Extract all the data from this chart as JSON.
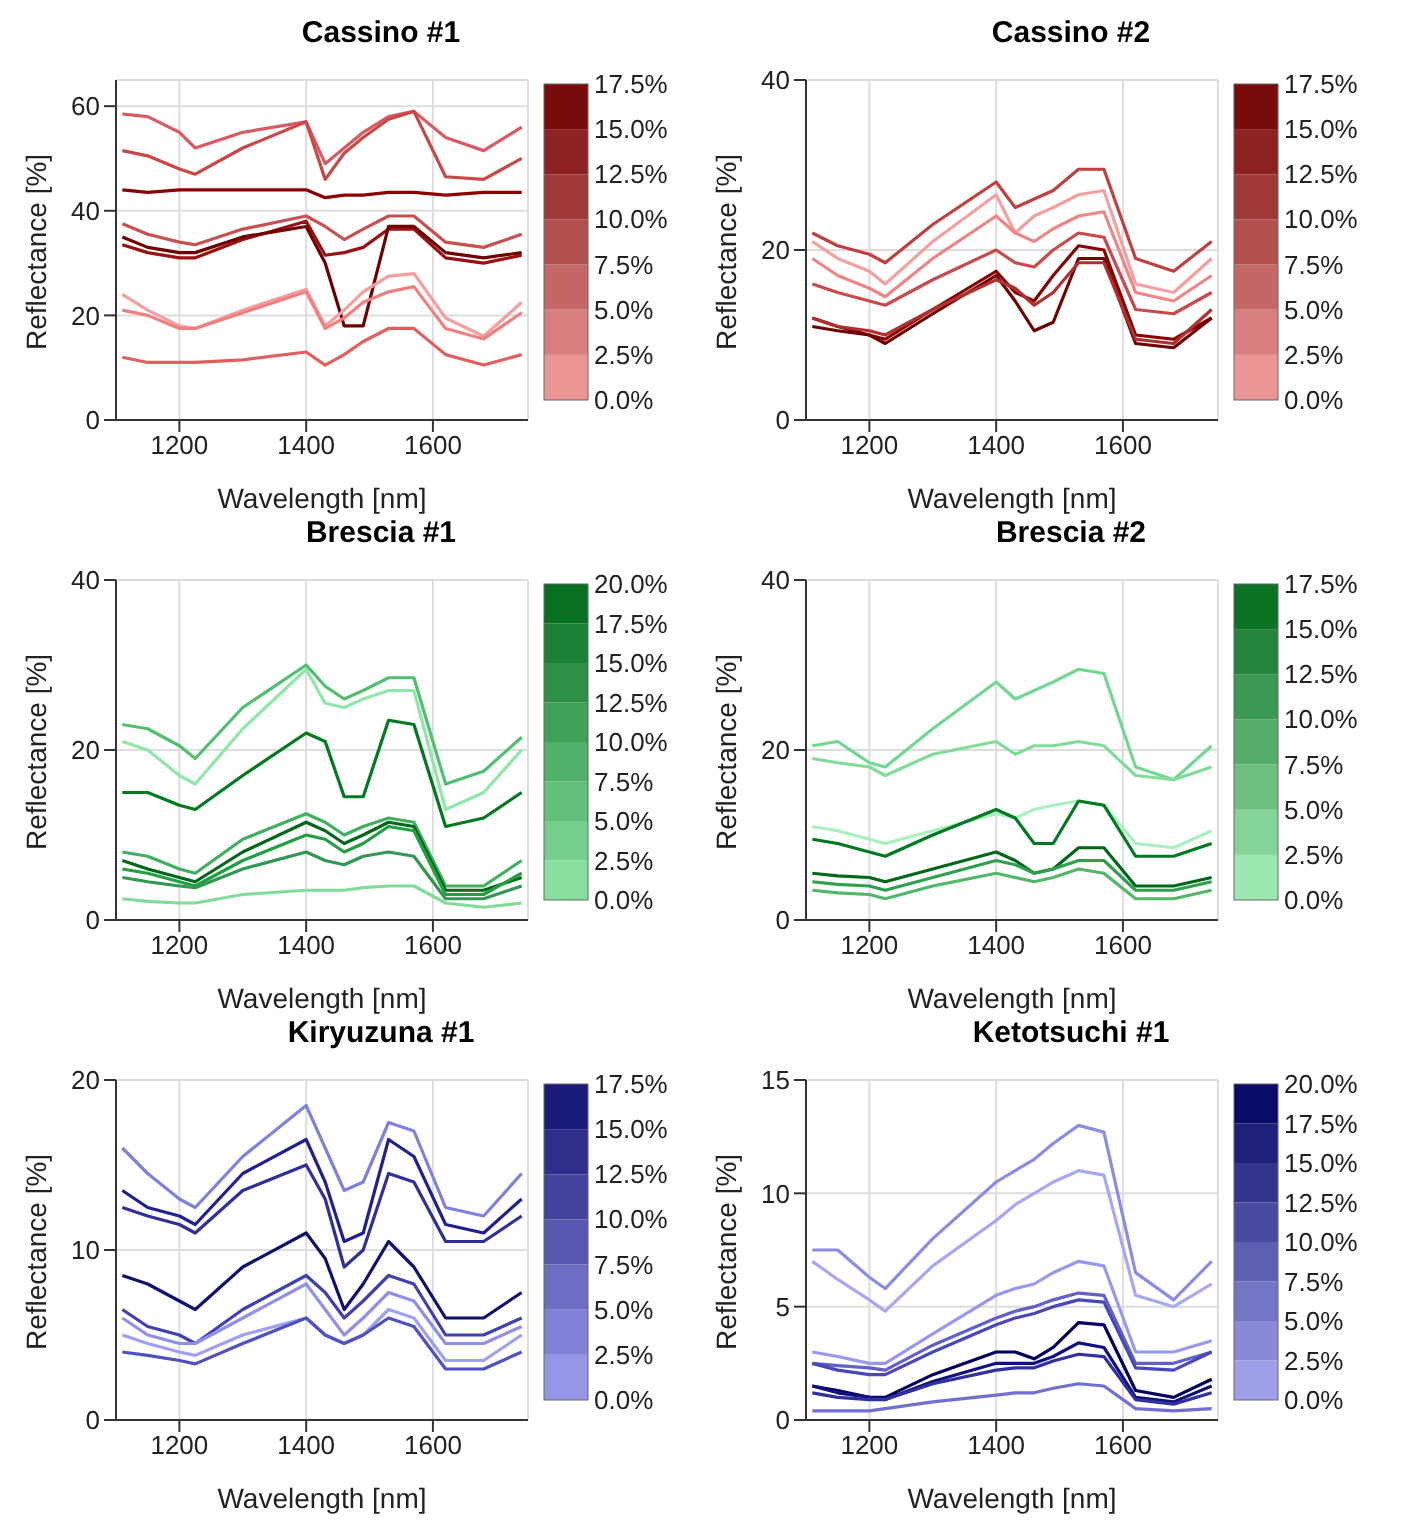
{
  "chart_data": [
    {
      "type": "line",
      "title": "Cassino #1",
      "xlabel": "Wavelength [nm]",
      "ylabel": "Reflectance  [%]",
      "x": [
        1110,
        1150,
        1200,
        1225,
        1300,
        1400,
        1430,
        1460,
        1490,
        1530,
        1570,
        1620,
        1680,
        1740
      ],
      "xlim": [
        1100,
        1750
      ],
      "xticks": [
        1200,
        1400,
        1600
      ],
      "ylim": [
        0,
        65
      ],
      "yticks": [
        0,
        20,
        40,
        60
      ],
      "grid": true,
      "clim": [
        0,
        17.5
      ],
      "cticks": [
        {
          "value": 0,
          "label": "0.0%"
        },
        {
          "value": 2.5,
          "label": "2.5%"
        },
        {
          "value": 5,
          "label": "5.0%"
        },
        {
          "value": 7.5,
          "label": "7.5%"
        },
        {
          "value": 10,
          "label": "10.0%"
        },
        {
          "value": 12.5,
          "label": "12.5%"
        },
        {
          "value": 15,
          "label": "15.0%"
        },
        {
          "value": 17.5,
          "label": "17.5%"
        }
      ],
      "series": [
        {
          "color": "#d95a60",
          "values": [
            58.5,
            58,
            55,
            52,
            55,
            57,
            49,
            52,
            55,
            58,
            59,
            54,
            51.5,
            56
          ]
        },
        {
          "color": "#c94747",
          "values": [
            51.5,
            50.5,
            48,
            47,
            52,
            57,
            46,
            51,
            54,
            57.5,
            59,
            46.5,
            46,
            50
          ]
        },
        {
          "color": "#8b0000",
          "values": [
            44,
            43.5,
            44,
            44,
            44,
            44,
            42.5,
            43,
            43,
            43.5,
            43.5,
            43,
            43.5,
            43.5
          ]
        },
        {
          "color": "#c85050",
          "values": [
            37.5,
            35.5,
            34,
            33.5,
            36.5,
            39,
            37,
            34.5,
            36.5,
            39,
            39,
            34,
            33,
            35.5
          ]
        },
        {
          "color": "#9b1010",
          "values": [
            33.5,
            32,
            31,
            31,
            34.5,
            38,
            31.5,
            32,
            33,
            36.5,
            36.5,
            31,
            30,
            31.5
          ]
        },
        {
          "color": "#700000",
          "values": [
            35,
            33,
            32,
            32,
            35,
            37,
            30,
            18,
            18,
            37,
            37,
            32,
            31,
            32
          ]
        },
        {
          "color": "#f4a0a0",
          "values": [
            24,
            21,
            18,
            17.5,
            21,
            25,
            18,
            21,
            24.5,
            27.5,
            28,
            19.5,
            16,
            22.5
          ]
        },
        {
          "color": "#f08080",
          "values": [
            21,
            20,
            17.5,
            17.5,
            20.5,
            24.5,
            17.5,
            19.5,
            22.5,
            24.5,
            25.5,
            17.5,
            15.5,
            20.5
          ]
        },
        {
          "color": "#e06060",
          "values": [
            12,
            11,
            11,
            11,
            11.5,
            13,
            10.5,
            12.5,
            15,
            17.5,
            17.5,
            12.5,
            10.5,
            12.5
          ]
        }
      ]
    },
    {
      "type": "line",
      "title": "Cassino #2",
      "xlabel": "Wavelength [nm]",
      "ylabel": "Reflectance  [%]",
      "x": [
        1110,
        1150,
        1200,
        1225,
        1300,
        1400,
        1430,
        1460,
        1490,
        1530,
        1570,
        1620,
        1680,
        1740
      ],
      "xlim": [
        1100,
        1750
      ],
      "xticks": [
        1200,
        1400,
        1600
      ],
      "ylim": [
        0,
        40
      ],
      "yticks": [
        0,
        20,
        40
      ],
      "grid": true,
      "clim": [
        0,
        17.5
      ],
      "cticks": [
        {
          "value": 0,
          "label": "0.0%"
        },
        {
          "value": 2.5,
          "label": "2.5%"
        },
        {
          "value": 5,
          "label": "5.0%"
        },
        {
          "value": 7.5,
          "label": "7.5%"
        },
        {
          "value": 10,
          "label": "10.0%"
        },
        {
          "value": 12.5,
          "label": "12.5%"
        },
        {
          "value": 15,
          "label": "15.0%"
        },
        {
          "value": 17.5,
          "label": "17.5%"
        }
      ],
      "series": [
        {
          "color": "#c04040",
          "values": [
            22,
            20.5,
            19.5,
            18.5,
            23,
            28,
            25,
            26,
            27,
            29.5,
            29.5,
            19,
            17.5,
            21
          ]
        },
        {
          "color": "#f4a0a0",
          "values": [
            21,
            19,
            17.5,
            16,
            21,
            26.5,
            22,
            24,
            25,
            26.5,
            27,
            16,
            15,
            19
          ]
        },
        {
          "color": "#f08585",
          "values": [
            19,
            17,
            15.5,
            14.5,
            19,
            24,
            22,
            21,
            22.5,
            24,
            24.5,
            15,
            14,
            17
          ]
        },
        {
          "color": "#c84a4a",
          "values": [
            16,
            15,
            14,
            13.5,
            16.5,
            20,
            18.5,
            18,
            20,
            22,
            21.5,
            13,
            12.5,
            15
          ]
        },
        {
          "color": "#8b0000",
          "values": [
            12,
            11,
            10,
            9.5,
            13,
            17.5,
            15,
            14,
            17,
            20.5,
            20,
            10,
            9.5,
            12
          ]
        },
        {
          "color": "#700000",
          "values": [
            11,
            10.5,
            10,
            9,
            12.5,
            17,
            14,
            10.5,
            11.5,
            19,
            19,
            9,
            8.5,
            12
          ]
        },
        {
          "color": "#b03030",
          "values": [
            12,
            11,
            10.5,
            10,
            13,
            16.5,
            15.5,
            13.5,
            15,
            18.5,
            18.5,
            9.5,
            9,
            13
          ]
        }
      ]
    },
    {
      "type": "line",
      "title": "Brescia #1",
      "xlabel": "Wavelength [nm]",
      "ylabel": "Reflectance  [%]",
      "x": [
        1110,
        1150,
        1200,
        1225,
        1300,
        1400,
        1430,
        1460,
        1490,
        1530,
        1570,
        1620,
        1680,
        1740
      ],
      "xlim": [
        1100,
        1750
      ],
      "xticks": [
        1200,
        1400,
        1600
      ],
      "ylim": [
        0,
        40
      ],
      "yticks": [
        0,
        20,
        40
      ],
      "grid": true,
      "clim": [
        0,
        20
      ],
      "cticks": [
        {
          "value": 0,
          "label": "0.0%"
        },
        {
          "value": 2.5,
          "label": "2.5%"
        },
        {
          "value": 5,
          "label": "5.0%"
        },
        {
          "value": 7.5,
          "label": "7.5%"
        },
        {
          "value": 10,
          "label": "10.0%"
        },
        {
          "value": 12.5,
          "label": "12.5%"
        },
        {
          "value": 15,
          "label": "15.0%"
        },
        {
          "value": 17.5,
          "label": "17.5%"
        },
        {
          "value": 20,
          "label": "20.0%"
        }
      ],
      "series": [
        {
          "color": "#50c070",
          "values": [
            23,
            22.5,
            20.5,
            19,
            25,
            30,
            27.5,
            26,
            27,
            28.5,
            28.5,
            16,
            17.5,
            21.5
          ]
        },
        {
          "color": "#90e8a8",
          "values": [
            21,
            20,
            17,
            16,
            22.5,
            29.5,
            25.5,
            25,
            26,
            27,
            27,
            13,
            15,
            20
          ]
        },
        {
          "color": "#007a20",
          "values": [
            15,
            15,
            13.5,
            13,
            17,
            22,
            21,
            14.5,
            14.5,
            23.5,
            23,
            11,
            12,
            15
          ]
        },
        {
          "color": "#40b060",
          "values": [
            8,
            7.5,
            6,
            5.5,
            9.5,
            12.5,
            11.5,
            10,
            11,
            12,
            11.5,
            4,
            4,
            7
          ]
        },
        {
          "color": "#006818",
          "values": [
            7,
            6,
            5,
            4.5,
            8,
            11.5,
            10.5,
            9,
            10,
            11.5,
            11,
            3.5,
            3.5,
            5
          ]
        },
        {
          "color": "#20a040",
          "values": [
            6,
            5.5,
            4.5,
            4,
            7,
            10,
            9.5,
            8,
            9,
            11,
            10.5,
            3,
            3,
            5.5
          ]
        },
        {
          "color": "#309850",
          "values": [
            5,
            4.5,
            4,
            3.8,
            6,
            8,
            7,
            6.5,
            7.5,
            8,
            7.5,
            2.5,
            2.5,
            4
          ]
        },
        {
          "color": "#80dc98",
          "values": [
            2.5,
            2.2,
            2,
            2,
            3,
            3.5,
            3.5,
            3.5,
            3.8,
            4,
            4,
            2,
            1.5,
            2
          ]
        }
      ]
    },
    {
      "type": "line",
      "title": "Brescia #2",
      "xlabel": "Wavelength [nm]",
      "ylabel": "Reflectance  [%]",
      "x": [
        1110,
        1150,
        1200,
        1225,
        1300,
        1400,
        1430,
        1460,
        1490,
        1530,
        1570,
        1620,
        1680,
        1740
      ],
      "xlim": [
        1100,
        1750
      ],
      "xticks": [
        1200,
        1400,
        1600
      ],
      "ylim": [
        0,
        40
      ],
      "yticks": [
        0,
        20,
        40
      ],
      "grid": true,
      "clim": [
        0,
        17.5
      ],
      "cticks": [
        {
          "value": 0,
          "label": "0.0%"
        },
        {
          "value": 2.5,
          "label": "2.5%"
        },
        {
          "value": 5,
          "label": "5.0%"
        },
        {
          "value": 7.5,
          "label": "7.5%"
        },
        {
          "value": 10,
          "label": "10.0%"
        },
        {
          "value": 12.5,
          "label": "12.5%"
        },
        {
          "value": 15,
          "label": "15.0%"
        },
        {
          "value": 17.5,
          "label": "17.5%"
        }
      ],
      "series": [
        {
          "color": "#70d890",
          "values": [
            20.5,
            21,
            18.5,
            18,
            22.5,
            28,
            26,
            27,
            28,
            29.5,
            29,
            18,
            16.5,
            20.5
          ]
        },
        {
          "color": "#80dc98",
          "values": [
            19,
            18.5,
            18,
            17,
            19.5,
            21,
            19.5,
            20.5,
            20.5,
            21,
            20.5,
            17,
            16.5,
            18
          ]
        },
        {
          "color": "#a8f0bc",
          "values": [
            11,
            10.5,
            9.5,
            9,
            10.5,
            12.5,
            12,
            13,
            13.5,
            14,
            13.5,
            9,
            8.5,
            10.5
          ]
        },
        {
          "color": "#007a20",
          "values": [
            9.5,
            9,
            8,
            7.5,
            10,
            13,
            12,
            9,
            9,
            14,
            13.5,
            7.5,
            7.5,
            9
          ]
        },
        {
          "color": "#006818",
          "values": [
            5.5,
            5.2,
            5,
            4.5,
            6,
            8,
            7,
            5.5,
            6,
            8.5,
            8.5,
            4,
            4,
            5
          ]
        },
        {
          "color": "#30a050",
          "values": [
            4.5,
            4.2,
            4,
            3.5,
            5,
            7,
            6.5,
            5.5,
            6,
            7,
            7,
            3.5,
            3.5,
            4.5
          ]
        },
        {
          "color": "#50b868",
          "values": [
            3.5,
            3.2,
            3,
            2.5,
            4,
            5.5,
            5,
            4.5,
            5,
            6,
            5.5,
            2.5,
            2.5,
            3.5
          ]
        }
      ]
    },
    {
      "type": "line",
      "title": "Kiryuzuna #1",
      "xlabel": "Wavelength [nm]",
      "ylabel": "Reflectance  [%]",
      "x": [
        1110,
        1150,
        1200,
        1225,
        1300,
        1400,
        1430,
        1460,
        1490,
        1530,
        1570,
        1620,
        1680,
        1740
      ],
      "xlim": [
        1100,
        1750
      ],
      "xticks": [
        1200,
        1400,
        1600
      ],
      "ylim": [
        0,
        20
      ],
      "yticks": [
        0,
        10,
        20
      ],
      "grid": true,
      "clim": [
        0,
        17.5
      ],
      "cticks": [
        {
          "value": 0,
          "label": "0.0%"
        },
        {
          "value": 2.5,
          "label": "2.5%"
        },
        {
          "value": 5,
          "label": "5.0%"
        },
        {
          "value": 7.5,
          "label": "7.5%"
        },
        {
          "value": 10,
          "label": "10.0%"
        },
        {
          "value": 12.5,
          "label": "12.5%"
        },
        {
          "value": 15,
          "label": "15.0%"
        },
        {
          "value": 17.5,
          "label": "17.5%"
        }
      ],
      "series": [
        {
          "color": "#8080e0",
          "values": [
            16,
            14.5,
            13,
            12.5,
            15.5,
            18.5,
            16,
            13.5,
            14,
            17.5,
            17,
            12.5,
            12,
            14.5
          ]
        },
        {
          "color": "#202090",
          "values": [
            13.5,
            12.5,
            12,
            11.5,
            14.5,
            16.5,
            14,
            10.5,
            11,
            16.5,
            15.5,
            11.5,
            11,
            13
          ]
        },
        {
          "color": "#303098",
          "values": [
            12.5,
            12,
            11.5,
            11,
            13.5,
            15,
            13,
            9,
            10,
            14.5,
            14,
            10.5,
            10.5,
            12
          ]
        },
        {
          "color": "#101070",
          "values": [
            8.5,
            8,
            7,
            6.5,
            9,
            11,
            9.5,
            6.5,
            8,
            10.5,
            9,
            6,
            6,
            7.5
          ]
        },
        {
          "color": "#4040b0",
          "values": [
            6.5,
            5.5,
            5,
            4.5,
            6.5,
            8.5,
            7.5,
            6,
            7,
            8.5,
            8,
            5,
            5,
            6
          ]
        },
        {
          "color": "#9090e8",
          "values": [
            6,
            5,
            4.5,
            4.5,
            6,
            8,
            6.5,
            5,
            6,
            7.5,
            7,
            4.5,
            4.5,
            5.5
          ]
        },
        {
          "color": "#a0a0f0",
          "values": [
            5,
            4.5,
            4,
            3.8,
            5,
            6,
            5,
            4.5,
            5,
            6.5,
            6,
            3.5,
            3.5,
            5
          ]
        },
        {
          "color": "#5050c0",
          "values": [
            4,
            3.8,
            3.5,
            3.3,
            4.5,
            6,
            5,
            4.5,
            5,
            6,
            5.5,
            3,
            3,
            4
          ]
        }
      ]
    },
    {
      "type": "line",
      "title": "Ketotsuchi #1",
      "xlabel": "Wavelength [nm]",
      "ylabel": "Reflectance  [%]",
      "x": [
        1110,
        1150,
        1200,
        1225,
        1300,
        1400,
        1430,
        1460,
        1490,
        1530,
        1570,
        1620,
        1680,
        1740
      ],
      "xlim": [
        1100,
        1750
      ],
      "xticks": [
        1200,
        1400,
        1600
      ],
      "ylim": [
        0,
        15
      ],
      "yticks": [
        0,
        5,
        10,
        15
      ],
      "grid": true,
      "clim": [
        0,
        20
      ],
      "cticks": [
        {
          "value": 0,
          "label": "0.0%"
        },
        {
          "value": 2.5,
          "label": "2.5%"
        },
        {
          "value": 5,
          "label": "5.0%"
        },
        {
          "value": 7.5,
          "label": "7.5%"
        },
        {
          "value": 10,
          "label": "10.0%"
        },
        {
          "value": 12.5,
          "label": "12.5%"
        },
        {
          "value": 15,
          "label": "15.0%"
        },
        {
          "value": 17.5,
          "label": "17.5%"
        },
        {
          "value": 20,
          "label": "20.0%"
        }
      ],
      "series": [
        {
          "color": "#8c8ce6",
          "values": [
            7.5,
            7.5,
            6.3,
            5.8,
            8,
            10.5,
            11,
            11.5,
            12.2,
            13,
            12.7,
            6.5,
            5.3,
            7
          ]
        },
        {
          "color": "#a8a8f2",
          "values": [
            7,
            6.2,
            5.3,
            4.8,
            6.8,
            8.8,
            9.5,
            10,
            10.5,
            11,
            10.8,
            5.5,
            5,
            6
          ]
        },
        {
          "color": "#9898ec",
          "values": [
            3,
            2.8,
            2.5,
            2.5,
            3.8,
            5.5,
            5.8,
            6,
            6.5,
            7,
            6.8,
            3,
            3,
            3.5
          ]
        },
        {
          "color": "#6060c8",
          "values": [
            2.5,
            2.4,
            2.3,
            2.2,
            3.3,
            4.5,
            4.8,
            5,
            5.3,
            5.6,
            5.5,
            2.5,
            2.5,
            3
          ]
        },
        {
          "color": "#4848b8",
          "values": [
            2.5,
            2.2,
            2,
            2,
            3,
            4.2,
            4.5,
            4.7,
            5,
            5.3,
            5.2,
            2.3,
            2.2,
            3
          ]
        },
        {
          "color": "#000060",
          "values": [
            1.5,
            1.3,
            1,
            1,
            2,
            3,
            3,
            2.7,
            3.2,
            4.3,
            4.2,
            1.3,
            1,
            1.8
          ]
        },
        {
          "color": "#101080",
          "values": [
            1.5,
            1.2,
            1,
            0.9,
            1.7,
            2.5,
            2.5,
            2.5,
            2.8,
            3.4,
            3.2,
            1,
            0.8,
            1.5
          ]
        },
        {
          "color": "#3030a0",
          "values": [
            1.2,
            1,
            0.9,
            0.9,
            1.6,
            2.2,
            2.3,
            2.3,
            2.6,
            2.9,
            2.8,
            0.9,
            0.7,
            1.2
          ]
        },
        {
          "color": "#7070d0",
          "values": [
            0.4,
            0.4,
            0.4,
            0.5,
            0.8,
            1.1,
            1.2,
            1.2,
            1.4,
            1.6,
            1.5,
            0.5,
            0.4,
            0.5
          ]
        }
      ]
    }
  ]
}
